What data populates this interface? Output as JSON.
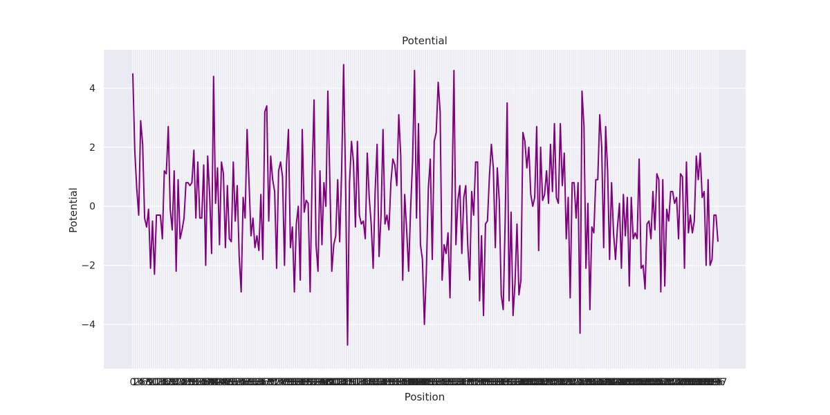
{
  "chart_data": {
    "type": "line",
    "title": "Potential",
    "xlabel": "Position",
    "ylabel": "Potential",
    "ylim": [
      -5.5,
      5.3
    ],
    "yticks": [
      -4,
      -2,
      0,
      2,
      4
    ],
    "ytick_labels": [
      "−4",
      "−2",
      "0",
      "2",
      "4"
    ],
    "grid": true,
    "series": [
      {
        "color": "#800080",
        "values": [
          4.5,
          1.9,
          0.6,
          -0.3,
          2.9,
          2.1,
          -0.4,
          -0.7,
          -0.1,
          -2.1,
          -0.5,
          -2.3,
          -0.3,
          -0.3,
          -0.3,
          -1.1,
          1.2,
          1.1,
          2.7,
          -0.1,
          -0.8,
          1.2,
          -2.2,
          0.9,
          -1.1,
          -0.8,
          -0.4,
          0.8,
          0.8,
          0.7,
          0.8,
          1.9,
          -0.4,
          1.5,
          -0.4,
          -0.4,
          1.4,
          -2.0,
          1.7,
          0.4,
          -1.6,
          4.4,
          0.1,
          1.3,
          -1.3,
          1.5,
          1.1,
          -1.4,
          0.7,
          -1.1,
          -1.2,
          1.5,
          -0.5,
          0.7,
          -1.7,
          -2.9,
          0.3,
          -0.4,
          2.6,
          0.8,
          -1.0,
          -0.4,
          -1.4,
          -1.0,
          -1.5,
          0.4,
          -1.8,
          3.2,
          3.4,
          -0.5,
          1.7,
          0.9,
          0.5,
          -2.1,
          1.2,
          1.5,
          1.0,
          -2.0,
          1.4,
          2.6,
          -1.4,
          -0.7,
          -2.9,
          -0.6,
          0.0,
          -2.5,
          2.6,
          -0.2,
          0.2,
          0.1,
          -2.9,
          1.0,
          3.6,
          -1.3,
          -2.2,
          1.2,
          -1.3,
          0.8,
          0.0,
          3.9,
          0.9,
          -2.2,
          -1.3,
          -1.0,
          0.9,
          -1.2,
          1.2,
          4.8,
          0.8,
          -4.7,
          0.8,
          2.2,
          1.5,
          -0.7,
          2.2,
          -0.3,
          -0.6,
          -0.5,
          -1.1,
          1.8,
          0.3,
          -0.6,
          -2.1,
          0.5,
          2.1,
          -1.7,
          -0.3,
          2.6,
          -0.6,
          -0.3,
          -0.8,
          0.8,
          1.6,
          1.4,
          0.7,
          3.1,
          1.7,
          -2.5,
          0.4,
          -0.8,
          -2.2,
          -0.1,
          1.5,
          4.6,
          -0.4,
          2.8,
          -1.3,
          -1.8,
          -4.0,
          -2.2,
          0.6,
          1.6,
          -1.8,
          2.2,
          2.5,
          4.2,
          3.2,
          -2.5,
          -1.3,
          -1.6,
          -0.9,
          -3.1,
          0.3,
          4.6,
          -1.3,
          0.2,
          0.7,
          -1.6,
          0.3,
          0.7,
          -1.3,
          -2.5,
          0.5,
          -0.3,
          1.5,
          1.5,
          -3.2,
          -1.0,
          -3.7,
          -0.6,
          -0.5,
          1.0,
          2.1,
          1.3,
          -1.4,
          1.3,
          0.2,
          -3.0,
          -3.5,
          -0.5,
          3.5,
          -3.2,
          -0.2,
          -3.7,
          -2.6,
          -0.6,
          -3.0,
          -2.5,
          2.5,
          2.2,
          1.3,
          2.0,
          0.4,
          0.0,
          0.3,
          2.7,
          -1.5,
          2.0,
          0.2,
          0.4,
          1.2,
          0.1,
          2.1,
          0.5,
          2.8,
          0.3,
          0.1,
          2.8,
          0.7,
          1.8,
          -1.1,
          0.3,
          -3.1,
          0.8,
          0.8,
          -0.4,
          0.8,
          -4.3,
          3.9,
          2.7,
          -2.1,
          0.1,
          -3.5,
          -0.7,
          -0.9,
          0.9,
          0.9,
          3.1,
          2.0,
          -1.4,
          2.7,
          1.2,
          -1.8,
          0.8,
          -0.9,
          -1.8,
          -0.7,
          0.1,
          -2.1,
          0.4,
          -1.0,
          0.3,
          -2.7,
          0.3,
          -1.1,
          -0.9,
          -1.1,
          1.6,
          -2.1,
          -2.0,
          -2.8,
          -0.6,
          -0.5,
          -1.1,
          0.5,
          -0.8,
          1.1,
          0.9,
          -2.9,
          0.9,
          -2.7,
          -0.1,
          -0.5,
          0.5,
          0.5,
          0.1,
          0.3,
          -1.1,
          1.1,
          1.0,
          -2.1,
          1.5,
          -0.9,
          -0.3,
          -0.9,
          -0.5,
          1.7,
          0.9,
          1.8,
          0.3,
          0.5,
          -2.0,
          0.9,
          -2.0,
          -1.8,
          -0.3,
          -0.3,
          -1.2
        ]
      }
    ]
  }
}
